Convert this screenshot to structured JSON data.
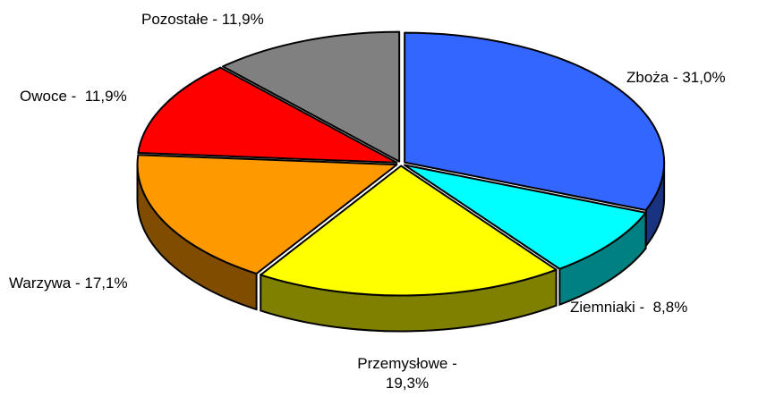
{
  "chart_data": {
    "type": "pie",
    "value_labels": [
      "Zboża - 31,0%",
      "Ziemniaki -  8,8%",
      "Przemysłowe - 19,3%",
      "Warzywa - 17,1%",
      "Owoce -  11,9%",
      "Pozostałe - 11,9%"
    ],
    "values": [
      31.0,
      8.8,
      19.3,
      17.1,
      11.9,
      11.9
    ],
    "colors": [
      "#3366ff",
      "#00ffff",
      "#ffff00",
      "#ff9900",
      "#ff0000",
      "#808080"
    ]
  }
}
